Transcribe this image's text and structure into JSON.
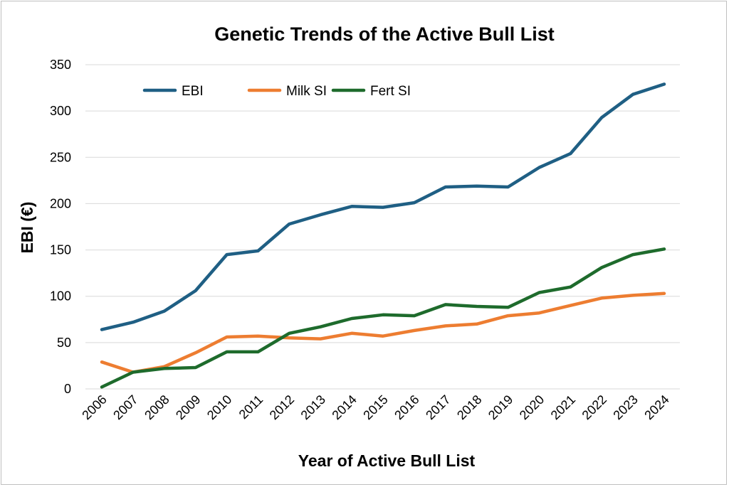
{
  "chart_data": {
    "type": "line",
    "title": "Genetic Trends of the Active Bull List",
    "xlabel": "Year of Active Bull List",
    "ylabel": "EBI (€)",
    "ylim": [
      0,
      350
    ],
    "yticks": [
      0,
      50,
      100,
      150,
      200,
      250,
      300,
      350
    ],
    "grid": true,
    "legend_position": "top-left",
    "categories": [
      "2006",
      "2007",
      "2008",
      "2009",
      "2010",
      "2011",
      "2012",
      "2013",
      "2014",
      "2015",
      "2016",
      "2017",
      "2018",
      "2019",
      "2020",
      "2021",
      "2022",
      "2023",
      "2024"
    ],
    "series": [
      {
        "name": "EBI",
        "color": "#1f5f84",
        "values": [
          64,
          72,
          84,
          106,
          145,
          149,
          178,
          188,
          197,
          196,
          201,
          218,
          219,
          218,
          239,
          254,
          293,
          318,
          329
        ]
      },
      {
        "name": "Milk SI",
        "color": "#ed7d31",
        "values": [
          29,
          18,
          24,
          39,
          56,
          57,
          55,
          54,
          60,
          57,
          63,
          68,
          70,
          79,
          82,
          90,
          98,
          101,
          103
        ]
      },
      {
        "name": "Fert SI",
        "color": "#1e6b2c",
        "values": [
          2,
          18,
          22,
          23,
          40,
          40,
          60,
          67,
          76,
          80,
          79,
          91,
          89,
          88,
          104,
          110,
          131,
          145,
          151
        ]
      }
    ]
  }
}
